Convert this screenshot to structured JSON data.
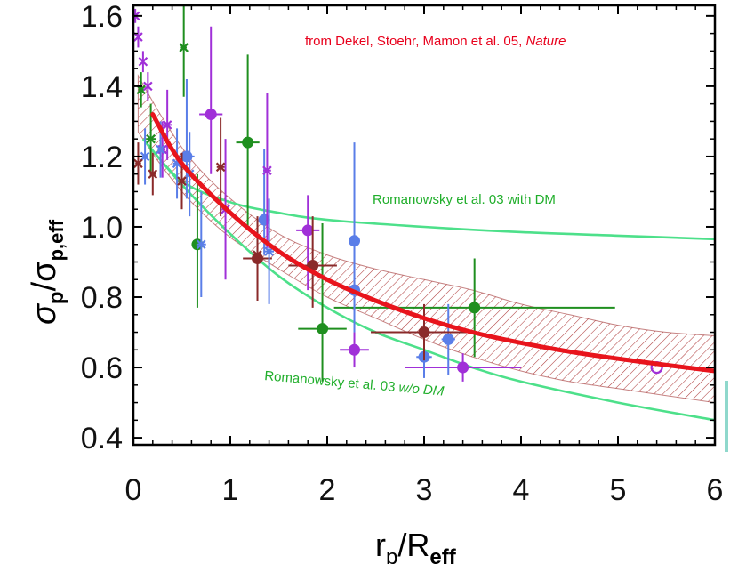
{
  "chart_data": {
    "type": "scatter",
    "title": "",
    "xlabel": {
      "base": "r",
      "sub": "p",
      "slash": "/R",
      "sub2": "eff"
    },
    "ylabel": {
      "base": "σ",
      "sub": "p",
      "slash": "/σ",
      "sub2": "p,eff"
    },
    "xlim": [
      0,
      6
    ],
    "ylim": [
      0.38,
      1.63
    ],
    "x_ticks": [
      "0",
      "1",
      "2",
      "3",
      "4",
      "5",
      "6"
    ],
    "y_ticks": [
      "0.4",
      "0.6",
      "0.8",
      "1.0",
      "1.2",
      "1.4",
      "1.6"
    ],
    "annotations": [
      {
        "name": "credit",
        "text_main": "from Dekel, Stoehr, Mamon et al. 05, ",
        "text_italic": "Nature",
        "color": "#e8001c"
      },
      {
        "name": "with-dm",
        "text": "Romanowsky et al. 03 with DM",
        "color": "#1fae2a"
      },
      {
        "name": "without-dm",
        "text_main": "Romanowsky et al. 03 ",
        "text_italic": "w/o DM",
        "color": "#1fae2a"
      }
    ],
    "model_curve": {
      "name": "simulation-mean",
      "color": "#e8141c",
      "x": [
        0.2,
        0.5,
        1.0,
        1.5,
        2.0,
        2.5,
        3.0,
        3.5,
        4.0,
        4.5,
        5.0,
        5.5,
        6.0
      ],
      "y": [
        1.32,
        1.18,
        1.04,
        0.93,
        0.85,
        0.79,
        0.74,
        0.7,
        0.67,
        0.645,
        0.625,
        0.607,
        0.59
      ]
    },
    "model_band": {
      "name": "simulation-spread",
      "color": "#a03030",
      "x": [
        0.05,
        0.3,
        0.6,
        1.0,
        1.5,
        2.0,
        2.5,
        3.0,
        3.5,
        4.0,
        4.5,
        5.0,
        5.5,
        6.0
      ],
      "upper": [
        1.43,
        1.31,
        1.19,
        1.08,
        0.98,
        0.92,
        0.88,
        0.85,
        0.82,
        0.78,
        0.75,
        0.72,
        0.7,
        0.69
      ],
      "lower": [
        1.27,
        1.17,
        1.07,
        0.97,
        0.88,
        0.8,
        0.74,
        0.68,
        0.63,
        0.59,
        0.56,
        0.54,
        0.52,
        0.5
      ]
    },
    "reference_curves": [
      {
        "name": "romanowsky-with-dm",
        "color": "#4de08a",
        "x": [
          0.1,
          0.5,
          1.0,
          1.5,
          2.0,
          3.0,
          4.0,
          5.0,
          6.0
        ],
        "y": [
          1.25,
          1.13,
          1.07,
          1.04,
          1.02,
          1.0,
          0.985,
          0.975,
          0.965
        ]
      },
      {
        "name": "romanowsky-without-dm",
        "color": "#4de08a",
        "x": [
          0.1,
          0.5,
          1.0,
          1.5,
          2.0,
          2.5,
          3.0,
          3.5,
          4.0,
          5.0,
          6.0
        ],
        "y": [
          1.25,
          1.12,
          0.98,
          0.86,
          0.77,
          0.7,
          0.65,
          0.6,
          0.56,
          0.5,
          0.45
        ]
      }
    ],
    "series": [
      {
        "name": "green-circles",
        "color": "#1f8f1f",
        "marker": "circle",
        "points": [
          [
            0.66,
            0.95,
            0.18,
            0.2,
            0.05
          ],
          [
            1.18,
            1.24,
            0.25,
            0.25,
            0.12
          ],
          [
            1.95,
            0.71,
            0.15,
            0.3,
            0.25
          ],
          [
            3.52,
            0.77,
            0.14,
            0.14,
            1.45
          ]
        ]
      },
      {
        "name": "purple-circles",
        "color": "#a030d8",
        "marker": "circle",
        "points": [
          [
            0.8,
            1.32,
            0.17,
            0.25,
            0.12
          ],
          [
            1.8,
            0.99,
            0.17,
            0.1,
            0.12
          ],
          [
            2.28,
            0.65,
            0.05,
            0.05,
            0.15
          ],
          [
            3.4,
            0.6,
            0.04,
            0.04,
            0.6
          ]
        ]
      },
      {
        "name": "blue-circles",
        "color": "#5a7ee8",
        "marker": "circle",
        "points": [
          [
            0.55,
            1.2,
            0.12,
            0.22,
            0.08
          ],
          [
            1.35,
            1.02,
            0.1,
            0.2,
            0.05
          ],
          [
            2.28,
            0.96,
            0.2,
            0.28,
            0.04
          ],
          [
            2.28,
            0.82,
            0.12,
            0.12,
            0.03
          ],
          [
            3.0,
            0.63,
            0.06,
            0.06,
            0.08
          ],
          [
            3.25,
            0.68,
            0.1,
            0.1,
            0.07
          ]
        ]
      },
      {
        "name": "brown-circles",
        "color": "#8a2a2a",
        "marker": "circle",
        "points": [
          [
            1.28,
            0.91,
            0.12,
            0.12,
            0.15
          ],
          [
            1.85,
            0.89,
            0.12,
            0.14,
            0.25
          ],
          [
            3.0,
            0.7,
            0.08,
            0.08,
            0.55
          ]
        ]
      },
      {
        "name": "green-crosses",
        "color": "#1f8f1f",
        "marker": "x",
        "points": [
          [
            0.52,
            1.51,
            0.14,
            0.14,
            0.03
          ],
          [
            0.08,
            1.39,
            0.05,
            0.05,
            0.03
          ],
          [
            0.18,
            1.25,
            0.1,
            0.1,
            0.05
          ]
        ]
      },
      {
        "name": "purple-crosses",
        "color": "#a030d8",
        "marker": "x",
        "points": [
          [
            0.02,
            1.6,
            0.02,
            0.02,
            0.0
          ],
          [
            0.05,
            1.54,
            0.03,
            0.03,
            0.0
          ],
          [
            0.1,
            1.47,
            0.03,
            0.03,
            0.0
          ],
          [
            0.15,
            1.4,
            0.04,
            0.04,
            0.0
          ],
          [
            0.35,
            1.29,
            0.1,
            0.1,
            0.05
          ],
          [
            0.95,
            1.05,
            0.2,
            0.2,
            0.04
          ],
          [
            1.38,
            1.16,
            0.22,
            0.22,
            0.04
          ],
          [
            0.3,
            1.22,
            0.08,
            0.08,
            0.03
          ]
        ]
      },
      {
        "name": "blue-crosses",
        "color": "#5a7ee8",
        "marker": "x",
        "points": [
          [
            0.12,
            1.2,
            0.08,
            0.08,
            0.03
          ],
          [
            0.28,
            1.22,
            0.08,
            0.08,
            0.03
          ],
          [
            0.45,
            1.18,
            0.1,
            0.1,
            0.04
          ],
          [
            0.58,
            1.15,
            0.12,
            0.12,
            0.03
          ],
          [
            0.7,
            0.95,
            0.15,
            0.15,
            0.05
          ],
          [
            1.4,
            0.93,
            0.15,
            0.15,
            0.05
          ]
        ]
      },
      {
        "name": "brown-crosses",
        "color": "#8a2a2a",
        "marker": "x",
        "points": [
          [
            0.05,
            1.18,
            0.06,
            0.06,
            0.03
          ],
          [
            0.2,
            1.15,
            0.06,
            0.06,
            0.03
          ],
          [
            0.5,
            1.13,
            0.08,
            0.08,
            0.04
          ],
          [
            0.9,
            1.17,
            0.14,
            0.14,
            0.04
          ],
          [
            1.28,
            0.92,
            0.1,
            0.1,
            0.04
          ]
        ]
      },
      {
        "name": "open-circle",
        "color": "#a030d8",
        "marker": "open-circle",
        "points": [
          [
            5.4,
            0.6,
            0.0,
            0.0,
            0.0
          ]
        ]
      }
    ]
  }
}
